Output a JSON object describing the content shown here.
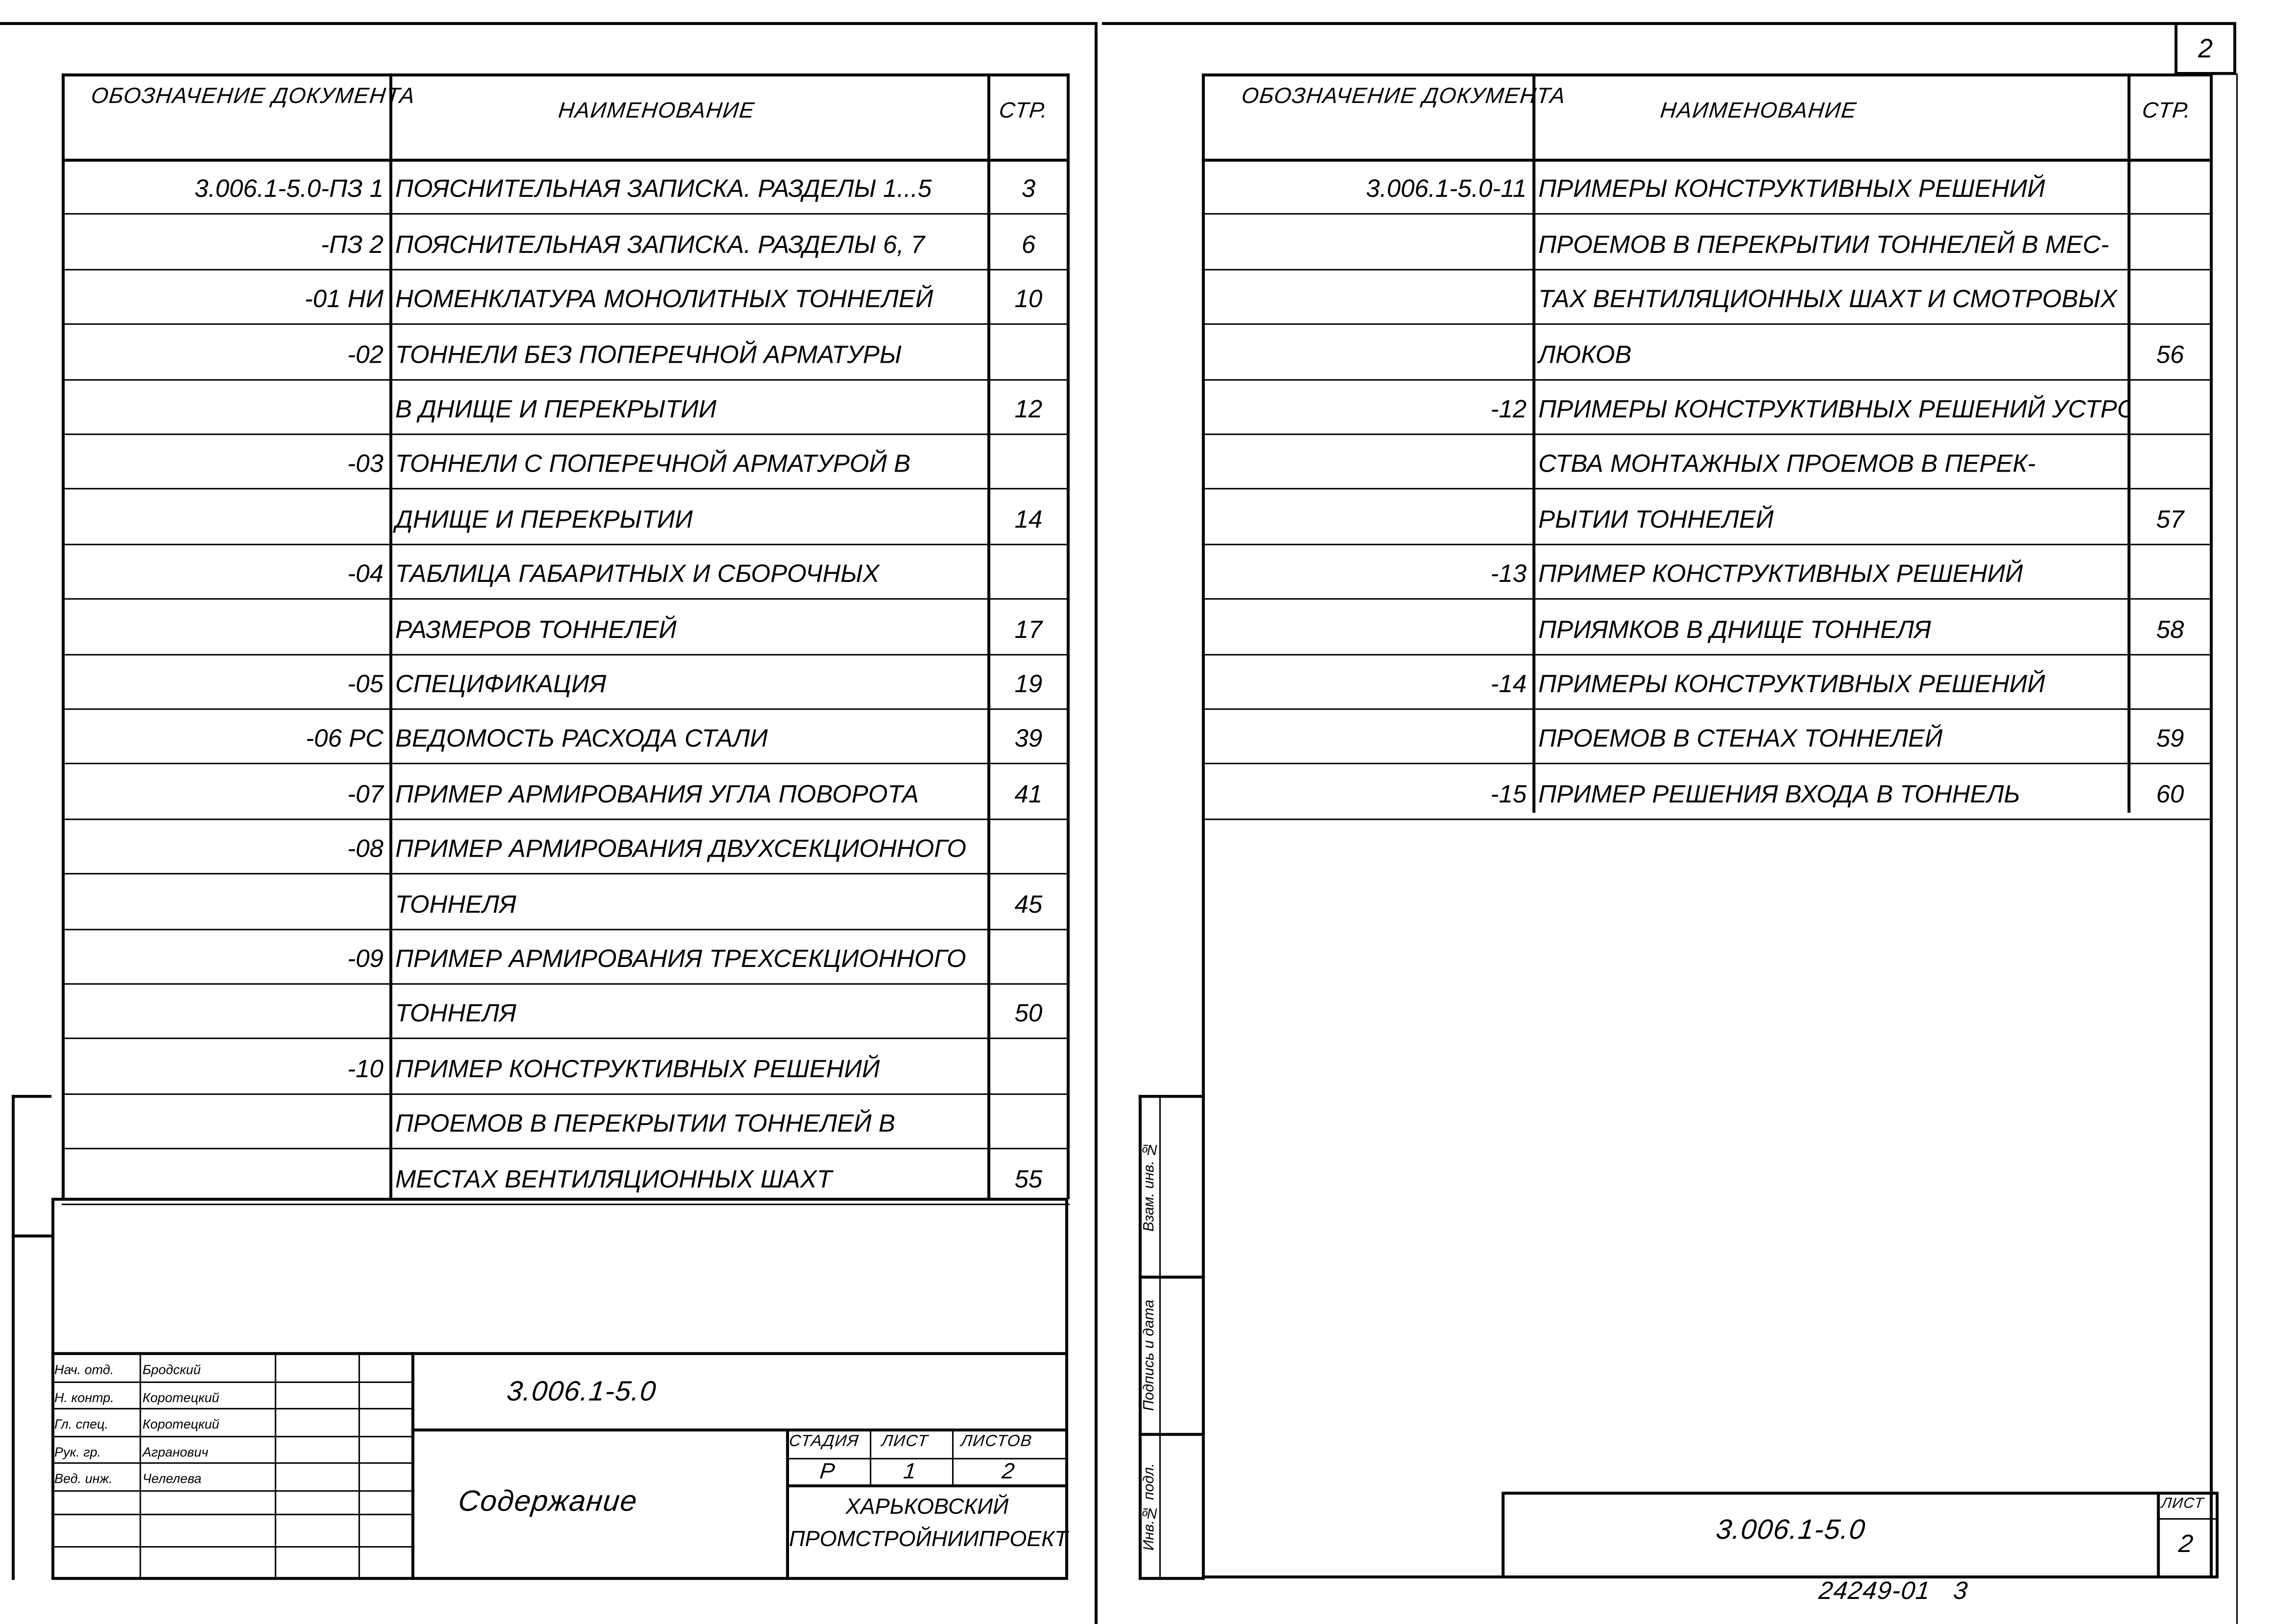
{
  "sheet_number_corner": "2",
  "headers": {
    "designation": "Обозначение документа",
    "name": "Наименование",
    "page": "Стр."
  },
  "left_rows": [
    {
      "code": "3.006.1-5.0-ПЗ 1",
      "name": "Пояснительная записка. Разделы 1...5",
      "page": "3"
    },
    {
      "code": "-ПЗ 2",
      "name": "Пояснительная записка. Разделы 6, 7",
      "page": "6"
    },
    {
      "code": "-01 НИ",
      "name": "Номенклатура монолитных тоннелей",
      "page": "10"
    },
    {
      "code": "-02",
      "name": "Тоннели без поперечной арматуры",
      "page": ""
    },
    {
      "code": "",
      "name": "в днище и перекрытии",
      "page": "12"
    },
    {
      "code": "-03",
      "name": "Тоннели с поперечной арматурой в",
      "page": ""
    },
    {
      "code": "",
      "name": "днище и перекрытии",
      "page": "14"
    },
    {
      "code": "-04",
      "name": "Таблица габаритных и сборочных",
      "page": ""
    },
    {
      "code": "",
      "name": "размеров тоннелей",
      "page": "17"
    },
    {
      "code": "-05",
      "name": "Спецификация",
      "page": "19"
    },
    {
      "code": "-06 РС",
      "name": "Ведомость расхода стали",
      "page": "39"
    },
    {
      "code": "-07",
      "name": "Пример армирования угла поворота",
      "page": "41"
    },
    {
      "code": "-08",
      "name": "Пример армирования двухсекционного",
      "page": ""
    },
    {
      "code": "",
      "name": "тоннеля",
      "page": "45"
    },
    {
      "code": "-09",
      "name": "Пример армирования трехсекционного",
      "page": ""
    },
    {
      "code": "",
      "name": "тоннеля",
      "page": "50"
    },
    {
      "code": "-10",
      "name": "Пример конструктивных решений",
      "page": ""
    },
    {
      "code": "",
      "name": "проемов в перекрытии тоннелей в",
      "page": ""
    },
    {
      "code": "",
      "name": "местах вентиляционных шахт",
      "page": "55"
    }
  ],
  "right_rows": [
    {
      "code": "3.006.1-5.0-11",
      "name": "Примеры конструктивных решений",
      "page": ""
    },
    {
      "code": "",
      "name": "проемов в перекрытии тоннелей в мес-",
      "page": ""
    },
    {
      "code": "",
      "name": "тах вентиляционных шахт и смотровых",
      "page": ""
    },
    {
      "code": "",
      "name": "люков",
      "page": "56"
    },
    {
      "code": "-12",
      "name": "Примеры конструктивных решений устрой-",
      "page": ""
    },
    {
      "code": "",
      "name": "ства монтажных проемов в перек-",
      "page": ""
    },
    {
      "code": "",
      "name": "рытии тоннелей",
      "page": "57"
    },
    {
      "code": "-13",
      "name": "Пример конструктивных решений",
      "page": ""
    },
    {
      "code": "",
      "name": "приямков в днище тоннеля",
      "page": "58"
    },
    {
      "code": "-14",
      "name": "Примеры конструктивных решений",
      "page": ""
    },
    {
      "code": "",
      "name": "проемов в стенах тоннелей",
      "page": "59"
    },
    {
      "code": "-15",
      "name": "Пример решения входа в тоннель",
      "page": "60"
    }
  ],
  "title_block": {
    "designation": "3.006.1-5.0",
    "title": "Содержание",
    "signers": [
      {
        "role": "Нач. отд.",
        "name": "Бродский"
      },
      {
        "role": "Н. контр.",
        "name": "Коротецкий"
      },
      {
        "role": "Гл. спец.",
        "name": "Коротецкий"
      },
      {
        "role": "Рук. гр.",
        "name": "Агранович"
      },
      {
        "role": "Вед. инж.",
        "name": "Челелева"
      }
    ],
    "stage_label": "Стадия",
    "sheet_label": "Лист",
    "sheets_label": "Листов",
    "stage": "Р",
    "sheet": "1",
    "sheets": "2",
    "organization": "Харьковский Промстройниипроект"
  },
  "side_stamp": {
    "inv_orig": "Инв.№ подл.",
    "sign_date": "Подпись и дата",
    "replace_inv": "Взам. инв. №"
  },
  "right_title_block": {
    "designation": "3.006.1-5.0",
    "sheet_label": "Лист",
    "sheet": "2"
  },
  "footer_code": "24249-01   3"
}
